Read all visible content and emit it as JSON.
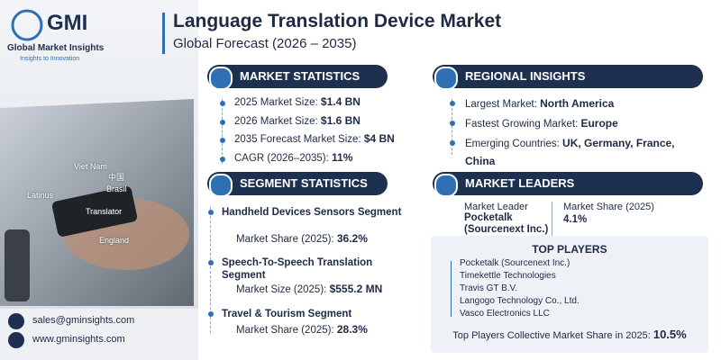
{
  "header": {
    "logo": "GMI",
    "company": "Global Market Insights",
    "tagline": "Insights to Innovation",
    "title": "Language Translation Device Market",
    "subtitle": "Global Forecast (2026 – 2035)"
  },
  "photo_labels": [
    "Viet Nam",
    "中国",
    "Brasil",
    "Latinus",
    "Translator",
    "England"
  ],
  "market_statistics": {
    "heading": "MARKET STATISTICS",
    "items": [
      {
        "label": "2025 Market Size:",
        "value": "$1.4 BN"
      },
      {
        "label": "2026 Market Size:",
        "value": "$1.6 BN"
      },
      {
        "label": "2035 Forecast Market Size:",
        "value": "$4 BN"
      },
      {
        "label": "CAGR (2026–2035):",
        "value": "11%"
      }
    ]
  },
  "regional_insights": {
    "heading": "REGIONAL INSIGHTS",
    "items": [
      {
        "label": "Largest Market:",
        "value": "North America"
      },
      {
        "label": "Fastest Growing Market:",
        "value": "Europe"
      },
      {
        "label": "Emerging Countries:",
        "value": "UK, Germany, France, China"
      }
    ]
  },
  "segment_statistics": {
    "heading": "SEGMENT STATISTICS",
    "segments": [
      {
        "name": "Handheld Devices Sensors Segment",
        "metric": "Market Share (2025):",
        "value": "36.2%"
      },
      {
        "name": "Speech-To-Speech Translation Segment",
        "metric": "Market Size (2025):",
        "value": "$555.2 MN"
      },
      {
        "name": "Travel & Tourism Segment",
        "metric": "Market Share (2025):",
        "value": "28.3%"
      }
    ]
  },
  "market_leaders": {
    "heading": "MARKET LEADERS",
    "leader_label": "Market Leader",
    "leader": "Pocketalk (Sourcenext Inc.)",
    "share_label": "Market Share (2025)",
    "share": "4.1%"
  },
  "top_players": {
    "heading": "TOP PLAYERS",
    "players": [
      "Pocketalk (Sourcenext Inc.)",
      "Timekettle Technologies",
      "Travis GT B.V.",
      "Langogo Technology Co., Ltd.",
      "Vasco Electronics LLC"
    ],
    "footer_label": "Top Players Collective Market Share in 2025:",
    "footer_value": "10.5%"
  },
  "contact": {
    "email": "sales@gminsights.com",
    "website": "www.gminsights.com"
  }
}
